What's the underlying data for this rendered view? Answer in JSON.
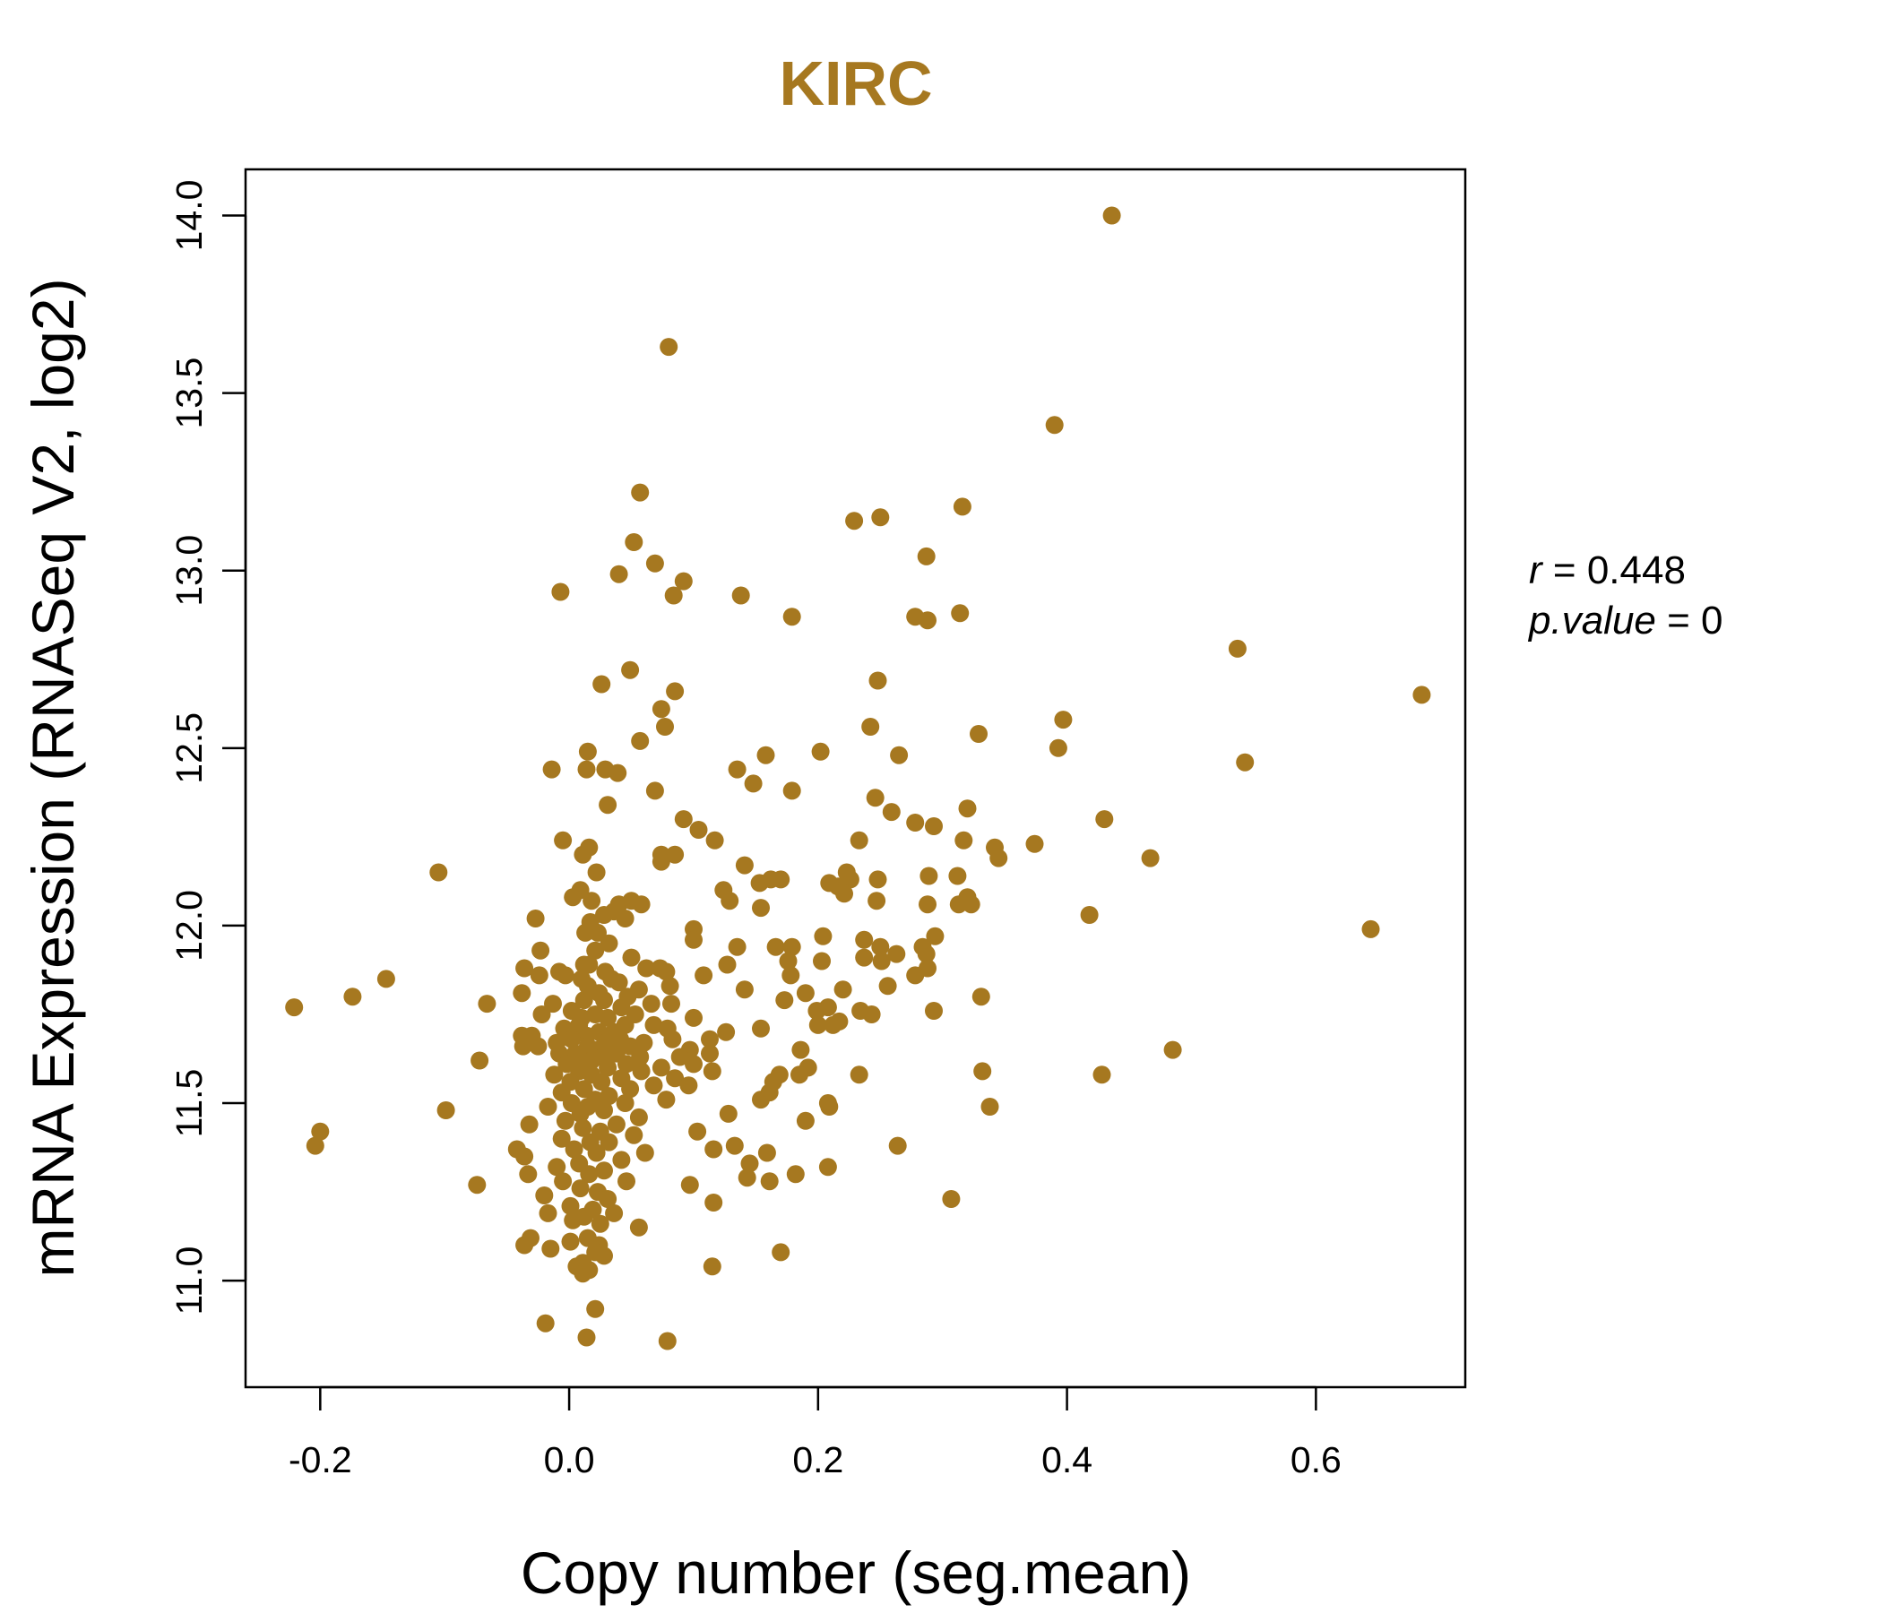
{
  "chart_data": {
    "type": "scatter",
    "title": "KIRC",
    "xlabel": "Copy number (seg.mean)",
    "ylabel": "mRNA Expression (RNASeq V2, log2)",
    "xlim": [
      -0.26,
      0.72
    ],
    "ylim": [
      10.7,
      14.13
    ],
    "xticks": [
      -0.2,
      0.0,
      0.2,
      0.4,
      0.6
    ],
    "xtick_labels": [
      "-0.2",
      "0.0",
      "0.2",
      "0.4",
      "0.6"
    ],
    "yticks": [
      11.0,
      11.5,
      12.0,
      12.5,
      13.0,
      13.5,
      14.0
    ],
    "ytick_labels": [
      "11.0",
      "11.5",
      "12.0",
      "12.5",
      "13.0",
      "13.5",
      "14.0"
    ],
    "grid": false,
    "color": "#A67820",
    "annotation": {
      "r_label": "r",
      "r_value": "0.448",
      "p_label": "p.value",
      "p_value": "0"
    },
    "points": [
      {
        "x": 0.436,
        "y": 14.0
      },
      {
        "x": 0.08,
        "y": 13.63
      },
      {
        "x": 0.39,
        "y": 13.41
      },
      {
        "x": 0.057,
        "y": 13.22
      },
      {
        "x": 0.316,
        "y": 13.18
      },
      {
        "x": 0.229,
        "y": 13.14
      },
      {
        "x": 0.25,
        "y": 13.15
      },
      {
        "x": 0.052,
        "y": 13.08
      },
      {
        "x": 0.287,
        "y": 13.04
      },
      {
        "x": 0.069,
        "y": 13.02
      },
      {
        "x": 0.04,
        "y": 12.99
      },
      {
        "x": 0.092,
        "y": 12.97
      },
      {
        "x": -0.007,
        "y": 12.94
      },
      {
        "x": 0.138,
        "y": 12.93
      },
      {
        "x": 0.084,
        "y": 12.93
      },
      {
        "x": 0.314,
        "y": 12.88
      },
      {
        "x": 0.278,
        "y": 12.87
      },
      {
        "x": 0.288,
        "y": 12.86
      },
      {
        "x": 0.179,
        "y": 12.87
      },
      {
        "x": 0.537,
        "y": 12.78
      },
      {
        "x": 0.049,
        "y": 12.72
      },
      {
        "x": 0.248,
        "y": 12.69
      },
      {
        "x": 0.026,
        "y": 12.68
      },
      {
        "x": 0.685,
        "y": 12.65
      },
      {
        "x": 0.085,
        "y": 12.66
      },
      {
        "x": 0.074,
        "y": 12.61
      },
      {
        "x": 0.397,
        "y": 12.58
      },
      {
        "x": 0.077,
        "y": 12.56
      },
      {
        "x": 0.242,
        "y": 12.56
      },
      {
        "x": 0.329,
        "y": 12.54
      },
      {
        "x": 0.057,
        "y": 12.52
      },
      {
        "x": 0.393,
        "y": 12.5
      },
      {
        "x": 0.202,
        "y": 12.49
      },
      {
        "x": 0.015,
        "y": 12.49
      },
      {
        "x": 0.158,
        "y": 12.48
      },
      {
        "x": 0.265,
        "y": 12.48
      },
      {
        "x": 0.543,
        "y": 12.46
      },
      {
        "x": -0.014,
        "y": 12.44
      },
      {
        "x": 0.014,
        "y": 12.44
      },
      {
        "x": 0.029,
        "y": 12.44
      },
      {
        "x": 0.135,
        "y": 12.44
      },
      {
        "x": 0.039,
        "y": 12.43
      },
      {
        "x": 0.148,
        "y": 12.4
      },
      {
        "x": 0.069,
        "y": 12.38
      },
      {
        "x": 0.179,
        "y": 12.38
      },
      {
        "x": 0.246,
        "y": 12.36
      },
      {
        "x": 0.031,
        "y": 12.34
      },
      {
        "x": 0.32,
        "y": 12.33
      },
      {
        "x": 0.259,
        "y": 12.32
      },
      {
        "x": 0.43,
        "y": 12.3
      },
      {
        "x": 0.092,
        "y": 12.3
      },
      {
        "x": 0.278,
        "y": 12.29
      },
      {
        "x": 0.293,
        "y": 12.28
      },
      {
        "x": 0.104,
        "y": 12.27
      },
      {
        "x": -0.005,
        "y": 12.24
      },
      {
        "x": 0.117,
        "y": 12.24
      },
      {
        "x": 0.317,
        "y": 12.24
      },
      {
        "x": 0.233,
        "y": 12.24
      },
      {
        "x": 0.374,
        "y": 12.23
      },
      {
        "x": 0.342,
        "y": 12.22
      },
      {
        "x": 0.016,
        "y": 12.22
      },
      {
        "x": 0.011,
        "y": 12.2
      },
      {
        "x": 0.074,
        "y": 12.2
      },
      {
        "x": 0.085,
        "y": 12.2
      },
      {
        "x": 0.467,
        "y": 12.19
      },
      {
        "x": 0.345,
        "y": 12.19
      },
      {
        "x": 0.074,
        "y": 12.18
      },
      {
        "x": 0.141,
        "y": 12.17
      },
      {
        "x": -0.105,
        "y": 12.15
      },
      {
        "x": 0.022,
        "y": 12.15
      },
      {
        "x": 0.223,
        "y": 12.15
      },
      {
        "x": 0.289,
        "y": 12.14
      },
      {
        "x": 0.312,
        "y": 12.14
      },
      {
        "x": 0.226,
        "y": 12.13
      },
      {
        "x": 0.17,
        "y": 12.13
      },
      {
        "x": 0.162,
        "y": 12.13
      },
      {
        "x": 0.248,
        "y": 12.13
      },
      {
        "x": 0.153,
        "y": 12.12
      },
      {
        "x": 0.209,
        "y": 12.12
      },
      {
        "x": 0.216,
        "y": 12.11
      },
      {
        "x": 0.124,
        "y": 12.1
      },
      {
        "x": 0.009,
        "y": 12.1
      },
      {
        "x": 0.221,
        "y": 12.09
      },
      {
        "x": 0.32,
        "y": 12.08
      },
      {
        "x": 0.003,
        "y": 12.08
      },
      {
        "x": 0.018,
        "y": 12.07
      },
      {
        "x": 0.05,
        "y": 12.07
      },
      {
        "x": 0.129,
        "y": 12.07
      },
      {
        "x": 0.247,
        "y": 12.07
      },
      {
        "x": 0.04,
        "y": 12.06
      },
      {
        "x": 0.323,
        "y": 12.06
      },
      {
        "x": 0.288,
        "y": 12.06
      },
      {
        "x": 0.313,
        "y": 12.06
      },
      {
        "x": 0.058,
        "y": 12.06
      },
      {
        "x": 0.154,
        "y": 12.05
      },
      {
        "x": 0.036,
        "y": 12.04
      },
      {
        "x": 0.418,
        "y": 12.03
      },
      {
        "x": 0.028,
        "y": 12.03
      },
      {
        "x": -0.027,
        "y": 12.02
      },
      {
        "x": 0.045,
        "y": 12.02
      },
      {
        "x": 0.017,
        "y": 12.01
      },
      {
        "x": 0.644,
        "y": 11.99
      },
      {
        "x": 0.1,
        "y": 11.99
      },
      {
        "x": 0.013,
        "y": 11.98
      },
      {
        "x": 0.023,
        "y": 11.98
      },
      {
        "x": 0.204,
        "y": 11.97
      },
      {
        "x": 0.294,
        "y": 11.97
      },
      {
        "x": 0.237,
        "y": 11.96
      },
      {
        "x": 0.1,
        "y": 11.96
      },
      {
        "x": 0.032,
        "y": 11.95
      },
      {
        "x": 0.284,
        "y": 11.94
      },
      {
        "x": 0.166,
        "y": 11.94
      },
      {
        "x": 0.135,
        "y": 11.94
      },
      {
        "x": 0.179,
        "y": 11.94
      },
      {
        "x": 0.25,
        "y": 11.94
      },
      {
        "x": -0.023,
        "y": 11.93
      },
      {
        "x": 0.021,
        "y": 11.93
      },
      {
        "x": 0.263,
        "y": 11.92
      },
      {
        "x": 0.287,
        "y": 11.92
      },
      {
        "x": 0.05,
        "y": 11.91
      },
      {
        "x": 0.237,
        "y": 11.91
      },
      {
        "x": 0.251,
        "y": 11.9
      },
      {
        "x": 0.203,
        "y": 11.9
      },
      {
        "x": 0.176,
        "y": 11.9
      },
      {
        "x": 0.012,
        "y": 11.89
      },
      {
        "x": 0.016,
        "y": 11.89
      },
      {
        "x": 0.127,
        "y": 11.89
      },
      {
        "x": -0.036,
        "y": 11.88
      },
      {
        "x": 0.062,
        "y": 11.88
      },
      {
        "x": 0.073,
        "y": 11.88
      },
      {
        "x": 0.288,
        "y": 11.88
      },
      {
        "x": -0.008,
        "y": 11.87
      },
      {
        "x": 0.029,
        "y": 11.87
      },
      {
        "x": 0.078,
        "y": 11.87
      },
      {
        "x": 0.278,
        "y": 11.86
      },
      {
        "x": 0.108,
        "y": 11.86
      },
      {
        "x": -0.003,
        "y": 11.86
      },
      {
        "x": 0.178,
        "y": 11.86
      },
      {
        "x": -0.024,
        "y": 11.86
      },
      {
        "x": 0.034,
        "y": 11.85
      },
      {
        "x": 0.01,
        "y": 11.85
      },
      {
        "x": 0.04,
        "y": 11.84
      },
      {
        "x": -0.147,
        "y": 11.85
      },
      {
        "x": 0.256,
        "y": 11.83
      },
      {
        "x": 0.015,
        "y": 11.83
      },
      {
        "x": 0.081,
        "y": 11.83
      },
      {
        "x": 0.056,
        "y": 11.82
      },
      {
        "x": 0.141,
        "y": 11.82
      },
      {
        "x": 0.22,
        "y": 11.82
      },
      {
        "x": -0.038,
        "y": 11.81
      },
      {
        "x": 0.19,
        "y": 11.81
      },
      {
        "x": 0.024,
        "y": 11.81
      },
      {
        "x": 0.047,
        "y": 11.8
      },
      {
        "x": -0.174,
        "y": 11.8
      },
      {
        "x": 0.331,
        "y": 11.8
      },
      {
        "x": 0.012,
        "y": 11.79
      },
      {
        "x": 0.173,
        "y": 11.79
      },
      {
        "x": 0.028,
        "y": 11.79
      },
      {
        "x": 0.066,
        "y": 11.78
      },
      {
        "x": 0.082,
        "y": 11.78
      },
      {
        "x": -0.013,
        "y": 11.78
      },
      {
        "x": -0.066,
        "y": 11.78
      },
      {
        "x": -0.221,
        "y": 11.77
      },
      {
        "x": 0.208,
        "y": 11.77
      },
      {
        "x": 0.042,
        "y": 11.77
      },
      {
        "x": 0.293,
        "y": 11.76
      },
      {
        "x": 0.234,
        "y": 11.76
      },
      {
        "x": 0.199,
        "y": 11.76
      },
      {
        "x": 0.002,
        "y": 11.76
      },
      {
        "x": 0.021,
        "y": 11.75
      },
      {
        "x": 0.053,
        "y": 11.75
      },
      {
        "x": 0.243,
        "y": 11.75
      },
      {
        "x": -0.022,
        "y": 11.75
      },
      {
        "x": 0.01,
        "y": 11.74
      },
      {
        "x": 0.1,
        "y": 11.74
      },
      {
        "x": 0.031,
        "y": 11.74
      },
      {
        "x": 0.217,
        "y": 11.73
      },
      {
        "x": 0.068,
        "y": 11.72
      },
      {
        "x": 0.008,
        "y": 11.72
      },
      {
        "x": 0.045,
        "y": 11.72
      },
      {
        "x": 0.2,
        "y": 11.72
      },
      {
        "x": 0.212,
        "y": 11.72
      },
      {
        "x": 0.079,
        "y": 11.71
      },
      {
        "x": 0.006,
        "y": 11.71
      },
      {
        "x": -0.004,
        "y": 11.71
      },
      {
        "x": 0.154,
        "y": 11.71
      },
      {
        "x": 0.036,
        "y": 11.7
      },
      {
        "x": 0.024,
        "y": 11.7
      },
      {
        "x": 0.126,
        "y": 11.7
      },
      {
        "x": -0.038,
        "y": 11.69
      },
      {
        "x": 0.014,
        "y": 11.69
      },
      {
        "x": -0.03,
        "y": 11.69
      },
      {
        "x": 0.083,
        "y": 11.68
      },
      {
        "x": 0.041,
        "y": 11.68
      },
      {
        "x": 0.002,
        "y": 11.68
      },
      {
        "x": 0.113,
        "y": 11.68
      },
      {
        "x": 0.029,
        "y": 11.67
      },
      {
        "x": -0.01,
        "y": 11.67
      },
      {
        "x": 0.06,
        "y": 11.67
      },
      {
        "x": -0.037,
        "y": 11.66
      },
      {
        "x": 0.015,
        "y": 11.66
      },
      {
        "x": 0.049,
        "y": 11.66
      },
      {
        "x": -0.025,
        "y": 11.66
      },
      {
        "x": 0.097,
        "y": 11.65
      },
      {
        "x": 0.186,
        "y": 11.65
      },
      {
        "x": 0.022,
        "y": 11.65
      },
      {
        "x": 0.485,
        "y": 11.65
      },
      {
        "x": 0.005,
        "y": 11.64
      },
      {
        "x": 0.038,
        "y": 11.64
      },
      {
        "x": 0.113,
        "y": 11.64
      },
      {
        "x": -0.008,
        "y": 11.64
      },
      {
        "x": 0.057,
        "y": 11.63
      },
      {
        "x": 0.027,
        "y": 11.63
      },
      {
        "x": 0.089,
        "y": 11.63
      },
      {
        "x": 0.011,
        "y": 11.62
      },
      {
        "x": -0.072,
        "y": 11.62
      },
      {
        "x": 0.018,
        "y": 11.62
      },
      {
        "x": 0.046,
        "y": 11.61
      },
      {
        "x": -0.002,
        "y": 11.61
      },
      {
        "x": 0.1,
        "y": 11.61
      },
      {
        "x": 0.074,
        "y": 11.6
      },
      {
        "x": 0.031,
        "y": 11.6
      },
      {
        "x": 0.192,
        "y": 11.6
      },
      {
        "x": 0.008,
        "y": 11.59
      },
      {
        "x": 0.115,
        "y": 11.59
      },
      {
        "x": 0.058,
        "y": 11.59
      },
      {
        "x": 0.332,
        "y": 11.59
      },
      {
        "x": 0.169,
        "y": 11.58
      },
      {
        "x": -0.012,
        "y": 11.58
      },
      {
        "x": 0.018,
        "y": 11.58
      },
      {
        "x": 0.185,
        "y": 11.58
      },
      {
        "x": 0.233,
        "y": 11.58
      },
      {
        "x": 0.428,
        "y": 11.58
      },
      {
        "x": 0.042,
        "y": 11.57
      },
      {
        "x": 0.085,
        "y": 11.57
      },
      {
        "x": 0.001,
        "y": 11.56
      },
      {
        "x": 0.026,
        "y": 11.56
      },
      {
        "x": 0.164,
        "y": 11.56
      },
      {
        "x": 0.068,
        "y": 11.55
      },
      {
        "x": 0.096,
        "y": 11.55
      },
      {
        "x": 0.012,
        "y": 11.54
      },
      {
        "x": 0.049,
        "y": 11.54
      },
      {
        "x": 0.161,
        "y": 11.53
      },
      {
        "x": -0.006,
        "y": 11.53
      },
      {
        "x": 0.032,
        "y": 11.52
      },
      {
        "x": 0.078,
        "y": 11.51
      },
      {
        "x": 0.154,
        "y": 11.51
      },
      {
        "x": 0.021,
        "y": 11.51
      },
      {
        "x": 0.002,
        "y": 11.5
      },
      {
        "x": 0.208,
        "y": 11.5
      },
      {
        "x": 0.045,
        "y": 11.5
      },
      {
        "x": 0.338,
        "y": 11.49
      },
      {
        "x": 0.015,
        "y": 11.49
      },
      {
        "x": -0.017,
        "y": 11.49
      },
      {
        "x": 0.209,
        "y": 11.49
      },
      {
        "x": -0.099,
        "y": 11.48
      },
      {
        "x": 0.028,
        "y": 11.48
      },
      {
        "x": 0.128,
        "y": 11.47
      },
      {
        "x": 0.009,
        "y": 11.47
      },
      {
        "x": 0.056,
        "y": 11.46
      },
      {
        "x": 0.19,
        "y": 11.45
      },
      {
        "x": -0.003,
        "y": 11.45
      },
      {
        "x": -0.032,
        "y": 11.44
      },
      {
        "x": 0.038,
        "y": 11.44
      },
      {
        "x": 0.011,
        "y": 11.43
      },
      {
        "x": 0.103,
        "y": 11.42
      },
      {
        "x": -0.2,
        "y": 11.42
      },
      {
        "x": 0.025,
        "y": 11.42
      },
      {
        "x": 0.052,
        "y": 11.41
      },
      {
        "x": -0.006,
        "y": 11.4
      },
      {
        "x": 0.017,
        "y": 11.39
      },
      {
        "x": 0.032,
        "y": 11.39
      },
      {
        "x": 0.264,
        "y": 11.38
      },
      {
        "x": 0.133,
        "y": 11.38
      },
      {
        "x": -0.204,
        "y": 11.38
      },
      {
        "x": -0.042,
        "y": 11.37
      },
      {
        "x": 0.116,
        "y": 11.37
      },
      {
        "x": 0.004,
        "y": 11.37
      },
      {
        "x": 0.061,
        "y": 11.36
      },
      {
        "x": 0.022,
        "y": 11.36
      },
      {
        "x": 0.159,
        "y": 11.36
      },
      {
        "x": -0.036,
        "y": 11.35
      },
      {
        "x": 0.042,
        "y": 11.34
      },
      {
        "x": 0.008,
        "y": 11.33
      },
      {
        "x": 0.145,
        "y": 11.33
      },
      {
        "x": 0.208,
        "y": 11.32
      },
      {
        "x": -0.01,
        "y": 11.32
      },
      {
        "x": 0.028,
        "y": 11.31
      },
      {
        "x": -0.033,
        "y": 11.3
      },
      {
        "x": 0.182,
        "y": 11.3
      },
      {
        "x": 0.016,
        "y": 11.3
      },
      {
        "x": 0.143,
        "y": 11.29
      },
      {
        "x": -0.005,
        "y": 11.28
      },
      {
        "x": 0.046,
        "y": 11.28
      },
      {
        "x": 0.161,
        "y": 11.28
      },
      {
        "x": -0.074,
        "y": 11.27
      },
      {
        "x": 0.097,
        "y": 11.27
      },
      {
        "x": 0.009,
        "y": 11.26
      },
      {
        "x": 0.023,
        "y": 11.25
      },
      {
        "x": -0.02,
        "y": 11.24
      },
      {
        "x": 0.031,
        "y": 11.23
      },
      {
        "x": 0.307,
        "y": 11.23
      },
      {
        "x": 0.116,
        "y": 11.22
      },
      {
        "x": 0.001,
        "y": 11.21
      },
      {
        "x": 0.019,
        "y": 11.2
      },
      {
        "x": -0.017,
        "y": 11.19
      },
      {
        "x": 0.036,
        "y": 11.19
      },
      {
        "x": 0.012,
        "y": 11.18
      },
      {
        "x": 0.003,
        "y": 11.17
      },
      {
        "x": 0.025,
        "y": 11.16
      },
      {
        "x": 0.056,
        "y": 11.15
      },
      {
        "x": -0.031,
        "y": 11.12
      },
      {
        "x": 0.015,
        "y": 11.12
      },
      {
        "x": 0.001,
        "y": 11.11
      },
      {
        "x": 0.024,
        "y": 11.1
      },
      {
        "x": -0.036,
        "y": 11.1
      },
      {
        "x": -0.015,
        "y": 11.09
      },
      {
        "x": 0.021,
        "y": 11.08
      },
      {
        "x": 0.17,
        "y": 11.08
      },
      {
        "x": 0.028,
        "y": 11.07
      },
      {
        "x": 0.011,
        "y": 11.05
      },
      {
        "x": 0.115,
        "y": 11.04
      },
      {
        "x": 0.006,
        "y": 11.04
      },
      {
        "x": 0.016,
        "y": 11.03
      },
      {
        "x": 0.011,
        "y": 11.02
      },
      {
        "x": 0.021,
        "y": 10.92
      },
      {
        "x": -0.019,
        "y": 10.88
      },
      {
        "x": 0.014,
        "y": 10.84
      },
      {
        "x": 0.079,
        "y": 10.83
      }
    ]
  }
}
